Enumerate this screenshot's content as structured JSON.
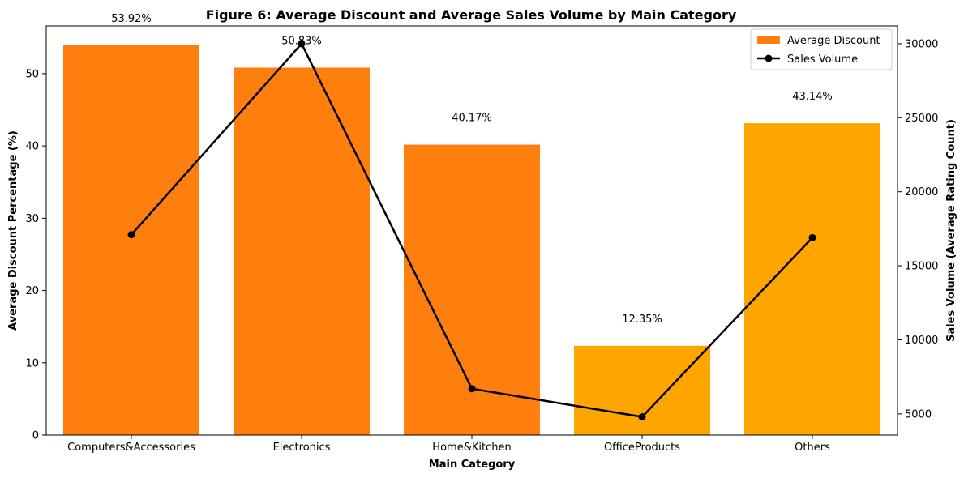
{
  "chart_data": {
    "type": "bar",
    "title": "Figure 6: Average Discount and Average Sales Volume by Main Category",
    "xlabel": "Main Category",
    "ylabel": "Average Discount Percentage (%)",
    "y2label": "Sales Volume (Average Rating Count)",
    "categories": [
      "Computers&Accessories",
      "Electronics",
      "Home&Kitchen",
      "OfficeProducts",
      "Others"
    ],
    "ylim": [
      0,
      56.6
    ],
    "y2lim": [
      3570,
      31200
    ],
    "yticks": [
      "0",
      "10",
      "20",
      "30",
      "40",
      "50"
    ],
    "y2ticks": [
      "5000",
      "10000",
      "15000",
      "20000",
      "25000",
      "30000"
    ],
    "series": [
      {
        "name": "Average Discount",
        "type": "bar",
        "axis": "left",
        "values": [
          53.92,
          50.83,
          40.17,
          12.35,
          43.14
        ],
        "labels": [
          "53.92%",
          "50.83%",
          "40.17%",
          "12.35%",
          "43.14%"
        ],
        "colors": [
          "#ff7f0e",
          "#ff7f0e",
          "#ff7f0e",
          "#ffa500",
          "#ffa500"
        ]
      },
      {
        "name": "Sales Volume",
        "type": "line",
        "axis": "right",
        "values": [
          17100,
          30000,
          6700,
          4800,
          16900
        ],
        "color": "#000000",
        "marker": "circle"
      }
    ],
    "grid": false,
    "legend_position": "top-right"
  }
}
